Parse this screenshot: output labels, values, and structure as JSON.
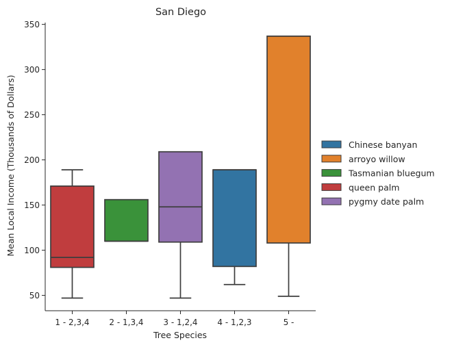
{
  "chart_data": {
    "type": "box",
    "title": "San Diego",
    "xlabel": "Tree Species",
    "ylabel": "Mean Local Income (Thousands of Dollars)",
    "ylim": [
      33,
      352
    ],
    "yticks": [
      50,
      100,
      150,
      200,
      250,
      300,
      350
    ],
    "grid": false,
    "legend_placement": "center-right",
    "categories": [
      "1 - 2,3,4",
      "2 - 1,3,4",
      "3 - 1,2,4",
      "4 - 1,2,3",
      "5 -"
    ],
    "boxes": [
      {
        "category": "1 - 2,3,4",
        "series": "queen palm",
        "whisker_low": 47,
        "q1": 81,
        "median": 92,
        "q3": 171,
        "whisker_high": 189
      },
      {
        "category": "2 - 1,3,4",
        "series": "Tasmanian bluegum",
        "whisker_low": 110,
        "q1": 110,
        "median": 110,
        "q3": 156,
        "whisker_high": 156
      },
      {
        "category": "3 - 1,2,4",
        "series": "pygmy date palm",
        "whisker_low": 47,
        "q1": 109,
        "median": 148,
        "q3": 209,
        "whisker_high": 209
      },
      {
        "category": "4 - 1,2,3",
        "series": "Chinese banyan",
        "whisker_low": 62,
        "q1": 82,
        "median": 189,
        "q3": 189,
        "whisker_high": 189
      },
      {
        "category": "5 -",
        "series": "arroyo willow",
        "whisker_low": 49,
        "q1": 108,
        "median": 337,
        "q3": 337,
        "whisker_high": 337
      }
    ],
    "legend": [
      {
        "name": "Chinese banyan",
        "color": "#3274a1"
      },
      {
        "name": "arroyo willow",
        "color": "#e1812c"
      },
      {
        "name": "Tasmanian bluegum",
        "color": "#3a923a"
      },
      {
        "name": "queen palm",
        "color": "#c03d3e"
      },
      {
        "name": "pygmy date palm",
        "color": "#9372b2"
      }
    ],
    "line_color": "#3d3d3d"
  }
}
